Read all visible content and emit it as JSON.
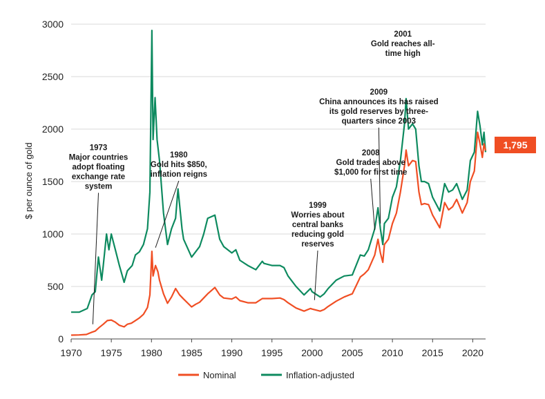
{
  "chart_data": {
    "type": "line",
    "ylabel": "$ per ounce of gold",
    "xlabel": "",
    "xlim": [
      1970,
      2021.6
    ],
    "ylim": [
      0,
      3000
    ],
    "x_ticks": [
      1970,
      1975,
      1980,
      1985,
      1990,
      1995,
      2000,
      2005,
      2010,
      2015,
      2020
    ],
    "y_ticks": [
      0,
      500,
      1000,
      1500,
      2000,
      2500,
      3000
    ],
    "grid": "horizontal",
    "legend_position": "bottom",
    "colors": {
      "nominal": "#f04e23",
      "inflation": "#0d8a5f",
      "badge": "#f04e23"
    },
    "latest_value_label": "1,795",
    "series": [
      {
        "name": "Nominal",
        "color": "#f04e23",
        "points": [
          [
            1970,
            36
          ],
          [
            1971,
            38
          ],
          [
            1971.9,
            43
          ],
          [
            1972.5,
            62
          ],
          [
            1973,
            75
          ],
          [
            1973.5,
            110
          ],
          [
            1974,
            140
          ],
          [
            1974.5,
            175
          ],
          [
            1975,
            180
          ],
          [
            1975.5,
            160
          ],
          [
            1976,
            130
          ],
          [
            1976.6,
            115
          ],
          [
            1977,
            140
          ],
          [
            1977.5,
            150
          ],
          [
            1978,
            175
          ],
          [
            1978.5,
            200
          ],
          [
            1979,
            235
          ],
          [
            1979.5,
            300
          ],
          [
            1979.8,
            420
          ],
          [
            1980.05,
            835
          ],
          [
            1980.2,
            600
          ],
          [
            1980.5,
            700
          ],
          [
            1980.8,
            640
          ],
          [
            1981,
            560
          ],
          [
            1981.5,
            430
          ],
          [
            1982,
            340
          ],
          [
            1982.5,
            400
          ],
          [
            1983,
            480
          ],
          [
            1983.5,
            420
          ],
          [
            1984,
            380
          ],
          [
            1985,
            305
          ],
          [
            1985.5,
            330
          ],
          [
            1986,
            350
          ],
          [
            1986.5,
            390
          ],
          [
            1987,
            430
          ],
          [
            1987.9,
            490
          ],
          [
            1988.5,
            420
          ],
          [
            1989,
            390
          ],
          [
            1990,
            380
          ],
          [
            1990.5,
            400
          ],
          [
            1991,
            365
          ],
          [
            1992,
            345
          ],
          [
            1993,
            345
          ],
          [
            1993.8,
            385
          ],
          [
            1994,
            385
          ],
          [
            1995,
            385
          ],
          [
            1996,
            390
          ],
          [
            1996.5,
            375
          ],
          [
            1997,
            345
          ],
          [
            1998,
            295
          ],
          [
            1999,
            265
          ],
          [
            1999.8,
            290
          ],
          [
            2000,
            285
          ],
          [
            2001,
            265
          ],
          [
            2001.5,
            280
          ],
          [
            2002,
            310
          ],
          [
            2003,
            360
          ],
          [
            2004,
            400
          ],
          [
            2005,
            430
          ],
          [
            2006,
            590
          ],
          [
            2006.5,
            620
          ],
          [
            2007,
            660
          ],
          [
            2007.8,
            800
          ],
          [
            2008.2,
            950
          ],
          [
            2008.5,
            820
          ],
          [
            2008.8,
            730
          ],
          [
            2009,
            900
          ],
          [
            2009.5,
            950
          ],
          [
            2010,
            1100
          ],
          [
            2010.5,
            1200
          ],
          [
            2011,
            1400
          ],
          [
            2011.5,
            1650
          ],
          [
            2011.7,
            1800
          ],
          [
            2012,
            1650
          ],
          [
            2012.5,
            1700
          ],
          [
            2012.9,
            1690
          ],
          [
            2013.3,
            1400
          ],
          [
            2013.6,
            1280
          ],
          [
            2014,
            1290
          ],
          [
            2014.5,
            1280
          ],
          [
            2015,
            1180
          ],
          [
            2015.9,
            1060
          ],
          [
            2016.5,
            1300
          ],
          [
            2017,
            1230
          ],
          [
            2017.5,
            1260
          ],
          [
            2018,
            1330
          ],
          [
            2018.7,
            1200
          ],
          [
            2019.3,
            1300
          ],
          [
            2019.7,
            1500
          ],
          [
            2020.2,
            1600
          ],
          [
            2020.6,
            1970
          ],
          [
            2020.9,
            1860
          ],
          [
            2021.2,
            1730
          ],
          [
            2021.4,
            1860
          ],
          [
            2021.6,
            1795
          ]
        ]
      },
      {
        "name": "Inflation-adjusted",
        "color": "#0d8a5f",
        "points": [
          [
            1970,
            255
          ],
          [
            1971,
            255
          ],
          [
            1972,
            290
          ],
          [
            1972.6,
            420
          ],
          [
            1973,
            450
          ],
          [
            1973.4,
            780
          ],
          [
            1973.8,
            560
          ],
          [
            1974,
            700
          ],
          [
            1974.4,
            1000
          ],
          [
            1974.7,
            850
          ],
          [
            1975,
            1000
          ],
          [
            1975.5,
            850
          ],
          [
            1976,
            700
          ],
          [
            1976.6,
            540
          ],
          [
            1977,
            650
          ],
          [
            1977.6,
            700
          ],
          [
            1978,
            800
          ],
          [
            1978.5,
            830
          ],
          [
            1979,
            900
          ],
          [
            1979.5,
            1050
          ],
          [
            1979.8,
            1400
          ],
          [
            1980.05,
            2940
          ],
          [
            1980.2,
            1900
          ],
          [
            1980.45,
            2300
          ],
          [
            1980.7,
            1900
          ],
          [
            1981,
            1700
          ],
          [
            1981.5,
            1200
          ],
          [
            1982,
            900
          ],
          [
            1982.5,
            1050
          ],
          [
            1983,
            1150
          ],
          [
            1983.3,
            1430
          ],
          [
            1983.8,
            1050
          ],
          [
            1984,
            950
          ],
          [
            1985,
            780
          ],
          [
            1985.5,
            830
          ],
          [
            1986,
            880
          ],
          [
            1986.5,
            1000
          ],
          [
            1987,
            1150
          ],
          [
            1987.9,
            1180
          ],
          [
            1988.5,
            950
          ],
          [
            1989,
            880
          ],
          [
            1990,
            820
          ],
          [
            1990.5,
            850
          ],
          [
            1991,
            750
          ],
          [
            1992,
            700
          ],
          [
            1993,
            660
          ],
          [
            1993.8,
            740
          ],
          [
            1994,
            720
          ],
          [
            1995,
            700
          ],
          [
            1996,
            700
          ],
          [
            1996.5,
            680
          ],
          [
            1997,
            600
          ],
          [
            1998,
            500
          ],
          [
            1999,
            420
          ],
          [
            1999.8,
            480
          ],
          [
            2000,
            450
          ],
          [
            2001,
            400
          ],
          [
            2001.5,
            430
          ],
          [
            2002,
            480
          ],
          [
            2003,
            560
          ],
          [
            2004,
            600
          ],
          [
            2005,
            610
          ],
          [
            2006,
            800
          ],
          [
            2006.5,
            790
          ],
          [
            2007,
            850
          ],
          [
            2007.8,
            1050
          ],
          [
            2008.2,
            1250
          ],
          [
            2008.5,
            1050
          ],
          [
            2008.8,
            900
          ],
          [
            2009,
            1100
          ],
          [
            2009.5,
            1150
          ],
          [
            2010,
            1350
          ],
          [
            2010.5,
            1450
          ],
          [
            2011,
            1700
          ],
          [
            2011.5,
            2050
          ],
          [
            2011.7,
            2290
          ],
          [
            2012,
            2000
          ],
          [
            2012.5,
            2050
          ],
          [
            2012.9,
            2000
          ],
          [
            2013.3,
            1650
          ],
          [
            2013.6,
            1500
          ],
          [
            2014,
            1500
          ],
          [
            2014.5,
            1480
          ],
          [
            2015,
            1350
          ],
          [
            2015.9,
            1220
          ],
          [
            2016.5,
            1480
          ],
          [
            2017,
            1400
          ],
          [
            2017.5,
            1420
          ],
          [
            2018,
            1480
          ],
          [
            2018.7,
            1330
          ],
          [
            2019.3,
            1420
          ],
          [
            2019.7,
            1700
          ],
          [
            2020.2,
            1780
          ],
          [
            2020.6,
            2170
          ],
          [
            2020.9,
            2030
          ],
          [
            2021.2,
            1850
          ],
          [
            2021.4,
            1970
          ],
          [
            2021.6,
            1780
          ]
        ]
      }
    ],
    "annotations": [
      {
        "lines": [
          "1973",
          "Major countries",
          "adopt floating",
          "exchange rate",
          "system"
        ],
        "x": 1972.7,
        "y": 140,
        "label_year": 1973.4,
        "label_value": 1800
      },
      {
        "lines": [
          "1980",
          "Gold hits $850,",
          "inflation reigns"
        ],
        "x": 1980.5,
        "y": 870,
        "label_year": 1983.4,
        "label_value": 1730
      },
      {
        "lines": [
          "1999",
          "Worries about",
          "central banks",
          "reducing gold",
          "reserves"
        ],
        "x": 2000.3,
        "y": 370,
        "label_year": 2000.7,
        "label_value": 1250
      },
      {
        "lines": [
          "2008",
          "Gold trades above",
          "$1,000 for first time"
        ],
        "x": 2007.8,
        "y": 1040,
        "label_year": 2007.3,
        "label_value": 1750
      },
      {
        "lines": [
          "2009",
          "China announces its has raised",
          "its gold reserves by three-",
          "quarters since 2003"
        ],
        "x": 2008.5,
        "y": 1100,
        "label_year": 2008.3,
        "label_value": 2330
      },
      {
        "lines": [
          "2001",
          "Gold reaches all-",
          "time high"
        ],
        "x": null,
        "y": null,
        "label_year": 2011.3,
        "label_value": 2880
      }
    ]
  }
}
